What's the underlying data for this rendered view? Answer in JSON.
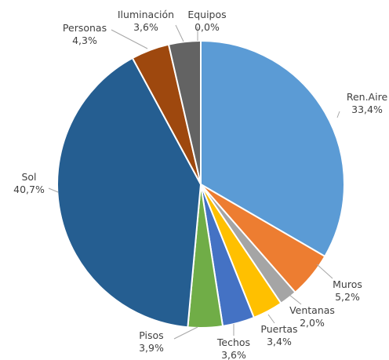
{
  "chart_data": {
    "type": "pie",
    "slices": [
      {
        "label": "Ren.Aire",
        "value": 33.4,
        "text": "33,4%",
        "color": "#5b9bd5"
      },
      {
        "label": "Muros",
        "value": 5.2,
        "text": "5,2%",
        "color": "#ed7d31"
      },
      {
        "label": "Ventanas",
        "value": 2.0,
        "text": "2,0%",
        "color": "#a5a5a5"
      },
      {
        "label": "Puertas",
        "value": 3.4,
        "text": "3,4%",
        "color": "#ffc000"
      },
      {
        "label": "Techos",
        "value": 3.6,
        "text": "3,6%",
        "color": "#4472c4"
      },
      {
        "label": "Pisos",
        "value": 3.9,
        "text": "3,9%",
        "color": "#70ad47"
      },
      {
        "label": "Sol",
        "value": 40.7,
        "text": "40,7%",
        "color": "#255e91"
      },
      {
        "label": "Personas",
        "value": 4.3,
        "text": "4,3%",
        "color": "#9e480e"
      },
      {
        "label": "Iluminación",
        "value": 3.6,
        "text": "3,6%",
        "color": "#636363"
      },
      {
        "label": "Equipos",
        "value": 0.0,
        "text": "0,0%",
        "color": "#997300"
      }
    ]
  }
}
